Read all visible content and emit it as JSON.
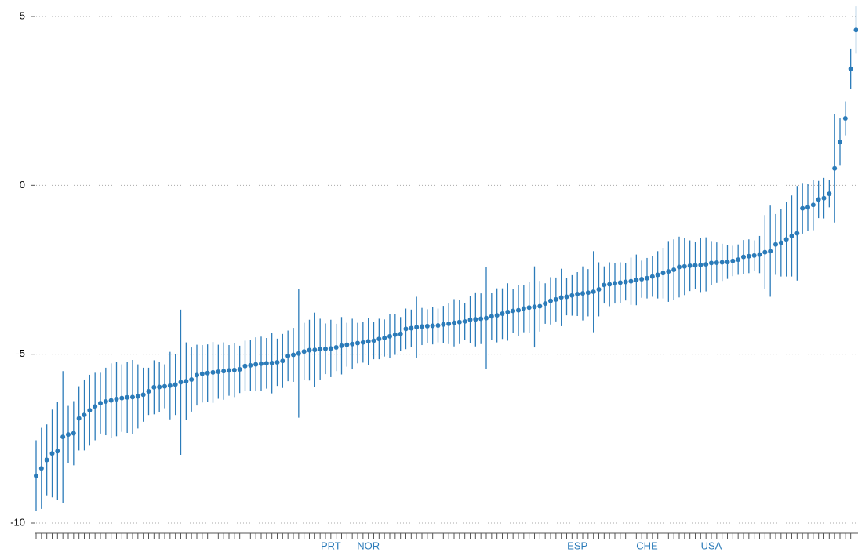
{
  "chart_data": {
    "type": "errorbar",
    "color": "#2b7bb9",
    "grid": true,
    "ylim": [
      -10,
      5
    ],
    "yticks": [
      -10,
      -5,
      0,
      5
    ],
    "categories": [
      null,
      null,
      null,
      null,
      null,
      null,
      null,
      null,
      null,
      null,
      null,
      null,
      null,
      null,
      null,
      null,
      null,
      null,
      null,
      null,
      null,
      null,
      null,
      null,
      null,
      null,
      null,
      null,
      null,
      null,
      null,
      null,
      null,
      null,
      null,
      null,
      null,
      null,
      null,
      null,
      null,
      null,
      null,
      null,
      null,
      null,
      null,
      null,
      null,
      null,
      null,
      null,
      null,
      null,
      null,
      "PRT",
      null,
      null,
      null,
      null,
      null,
      null,
      "NOR",
      null,
      null,
      null,
      null,
      null,
      null,
      null,
      null,
      null,
      null,
      null,
      null,
      null,
      null,
      null,
      null,
      null,
      null,
      null,
      null,
      null,
      null,
      null,
      null,
      null,
      null,
      null,
      null,
      null,
      null,
      null,
      null,
      null,
      null,
      null,
      null,
      null,
      null,
      "ESP",
      null,
      null,
      null,
      null,
      null,
      null,
      null,
      null,
      null,
      null,
      null,
      null,
      "CHE",
      null,
      null,
      null,
      null,
      null,
      null,
      null,
      null,
      null,
      null,
      null,
      "USA",
      null,
      null,
      null,
      null,
      null,
      null,
      null,
      null,
      null,
      null,
      null,
      null,
      null,
      null,
      null,
      null,
      null,
      null,
      null,
      null,
      null,
      null,
      null,
      null,
      null,
      null,
      null
    ],
    "values": [
      -8.6,
      -8.38,
      -8.13,
      -7.94,
      -7.87,
      -7.45,
      -7.38,
      -7.34,
      -6.9,
      -6.8,
      -6.66,
      -6.55,
      -6.45,
      -6.4,
      -6.37,
      -6.33,
      -6.3,
      -6.28,
      -6.27,
      -6.25,
      -6.2,
      -6.1,
      -5.98,
      -5.97,
      -5.95,
      -5.93,
      -5.9,
      -5.83,
      -5.8,
      -5.75,
      -5.62,
      -5.58,
      -5.56,
      -5.54,
      -5.52,
      -5.5,
      -5.48,
      -5.47,
      -5.45,
      -5.35,
      -5.33,
      -5.3,
      -5.28,
      -5.27,
      -5.26,
      -5.24,
      -5.2,
      -5.05,
      -5.02,
      -4.98,
      -4.92,
      -4.88,
      -4.87,
      -4.85,
      -4.84,
      -4.83,
      -4.8,
      -4.75,
      -4.72,
      -4.7,
      -4.67,
      -4.65,
      -4.62,
      -4.6,
      -4.55,
      -4.52,
      -4.47,
      -4.42,
      -4.4,
      -4.25,
      -4.23,
      -4.2,
      -4.18,
      -4.17,
      -4.16,
      -4.15,
      -4.12,
      -4.1,
      -4.07,
      -4.05,
      -4.03,
      -3.98,
      -3.97,
      -3.95,
      -3.93,
      -3.88,
      -3.85,
      -3.8,
      -3.75,
      -3.72,
      -3.7,
      -3.65,
      -3.62,
      -3.6,
      -3.58,
      -3.5,
      -3.42,
      -3.38,
      -3.32,
      -3.3,
      -3.26,
      -3.22,
      -3.2,
      -3.18,
      -3.15,
      -3.08,
      -2.95,
      -2.93,
      -2.9,
      -2.88,
      -2.86,
      -2.84,
      -2.8,
      -2.78,
      -2.75,
      -2.7,
      -2.65,
      -2.6,
      -2.55,
      -2.5,
      -2.42,
      -2.4,
      -2.38,
      -2.37,
      -2.36,
      -2.34,
      -2.3,
      -2.29,
      -2.28,
      -2.27,
      -2.24,
      -2.2,
      -2.12,
      -2.1,
      -2.08,
      -2.05,
      -1.98,
      -1.95,
      -1.75,
      -1.7,
      -1.6,
      -1.5,
      -1.42,
      -0.68,
      -0.65,
      -0.58,
      -0.42,
      -0.38,
      -0.25,
      0.5,
      1.28,
      1.98,
      3.45,
      4.6
    ],
    "errors": [
      1.05,
      1.2,
      1.05,
      1.3,
      1.45,
      1.95,
      0.85,
      0.95,
      0.95,
      1.05,
      1.05,
      1.0,
      0.9,
      1.0,
      1.1,
      1.1,
      1.0,
      1.05,
      1.1,
      0.95,
      0.8,
      0.7,
      0.8,
      0.75,
      0.65,
      1.0,
      0.9,
      2.15,
      1.15,
      0.95,
      0.9,
      0.85,
      0.85,
      0.9,
      0.8,
      0.85,
      0.75,
      0.8,
      0.7,
      0.75,
      0.75,
      0.8,
      0.8,
      0.75,
      0.9,
      0.7,
      0.8,
      0.75,
      0.8,
      1.9,
      0.85,
      0.9,
      1.1,
      0.9,
      0.75,
      0.85,
      0.7,
      0.85,
      0.65,
      0.75,
      0.6,
      0.6,
      0.7,
      0.55,
      0.6,
      0.55,
      0.65,
      0.6,
      0.5,
      0.6,
      0.55,
      0.9,
      0.55,
      0.5,
      0.55,
      0.5,
      0.55,
      0.6,
      0.7,
      0.65,
      0.55,
      0.7,
      0.8,
      0.75,
      1.5,
      0.7,
      0.8,
      0.75,
      0.85,
      0.65,
      0.75,
      0.7,
      0.75,
      1.2,
      0.75,
      0.6,
      0.7,
      0.65,
      0.85,
      0.55,
      0.6,
      0.65,
      0.8,
      0.7,
      1.2,
      0.8,
      0.55,
      0.65,
      0.6,
      0.6,
      0.55,
      0.7,
      0.75,
      0.55,
      0.6,
      0.6,
      0.7,
      0.75,
      0.9,
      0.9,
      0.9,
      0.85,
      0.75,
      0.7,
      0.8,
      0.8,
      0.65,
      0.6,
      0.55,
      0.5,
      0.45,
      0.45,
      0.5,
      0.5,
      0.45,
      0.55,
      1.1,
      1.35,
      0.9,
      1.0,
      1.1,
      1.2,
      1.4,
      0.75,
      0.7,
      0.75,
      0.55,
      0.6,
      0.4,
      1.6,
      0.7,
      0.5,
      0.6,
      0.7
    ]
  }
}
